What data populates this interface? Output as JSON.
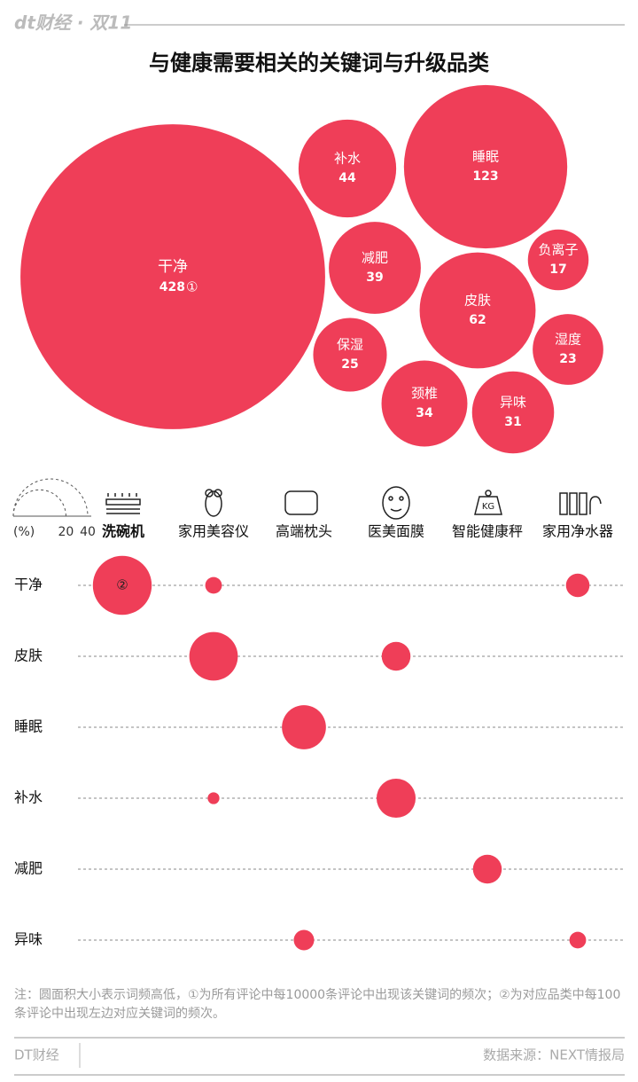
{
  "header": {
    "logo": "dt财经 · 双11"
  },
  "chart_data": [
    {
      "type": "bubble-cluster",
      "title": "与健康需要相关的关键词与升级品类",
      "categories": [
        "干净",
        "补水",
        "睡眠",
        "负离子",
        "减肥",
        "皮肤",
        "湿度",
        "保湿",
        "颈椎",
        "异味"
      ],
      "values": [
        428,
        44,
        123,
        17,
        39,
        62,
        23,
        25,
        34,
        31
      ],
      "annotation": "①",
      "color": "#ef3e58"
    },
    {
      "type": "bubble-matrix",
      "categories": [
        "洗碗机",
        "家用美容仪",
        "高端枕头",
        "医美面膜",
        "智能健康秤",
        "家用净水器"
      ],
      "series": [
        {
          "name": "干净",
          "values": [
            25,
            2,
            null,
            null,
            null,
            4
          ]
        },
        {
          "name": "皮肤",
          "values": [
            null,
            17,
            null,
            6,
            null,
            null
          ]
        },
        {
          "name": "睡眠",
          "values": [
            null,
            null,
            14,
            null,
            null,
            null
          ]
        },
        {
          "name": "补水",
          "values": [
            null,
            1,
            null,
            11,
            null,
            null
          ]
        },
        {
          "name": "减肥",
          "values": [
            null,
            null,
            null,
            null,
            6,
            null
          ]
        },
        {
          "name": "异味",
          "values": [
            null,
            null,
            3,
            null,
            null,
            2
          ]
        }
      ],
      "size_legend": [
        20,
        40
      ],
      "size_unit": "(%)",
      "annotation": "②",
      "color": "#ef3e58"
    }
  ],
  "footer": {
    "note": "注：圆面积大小表示词频高低，①为所有评论中每10000条评论中出现该关键词的频次；②为对应品类中每100条评论中出现左边对应关键词的频次。",
    "brand": "DT财经",
    "source": "数据来源：NEXT情报局"
  }
}
